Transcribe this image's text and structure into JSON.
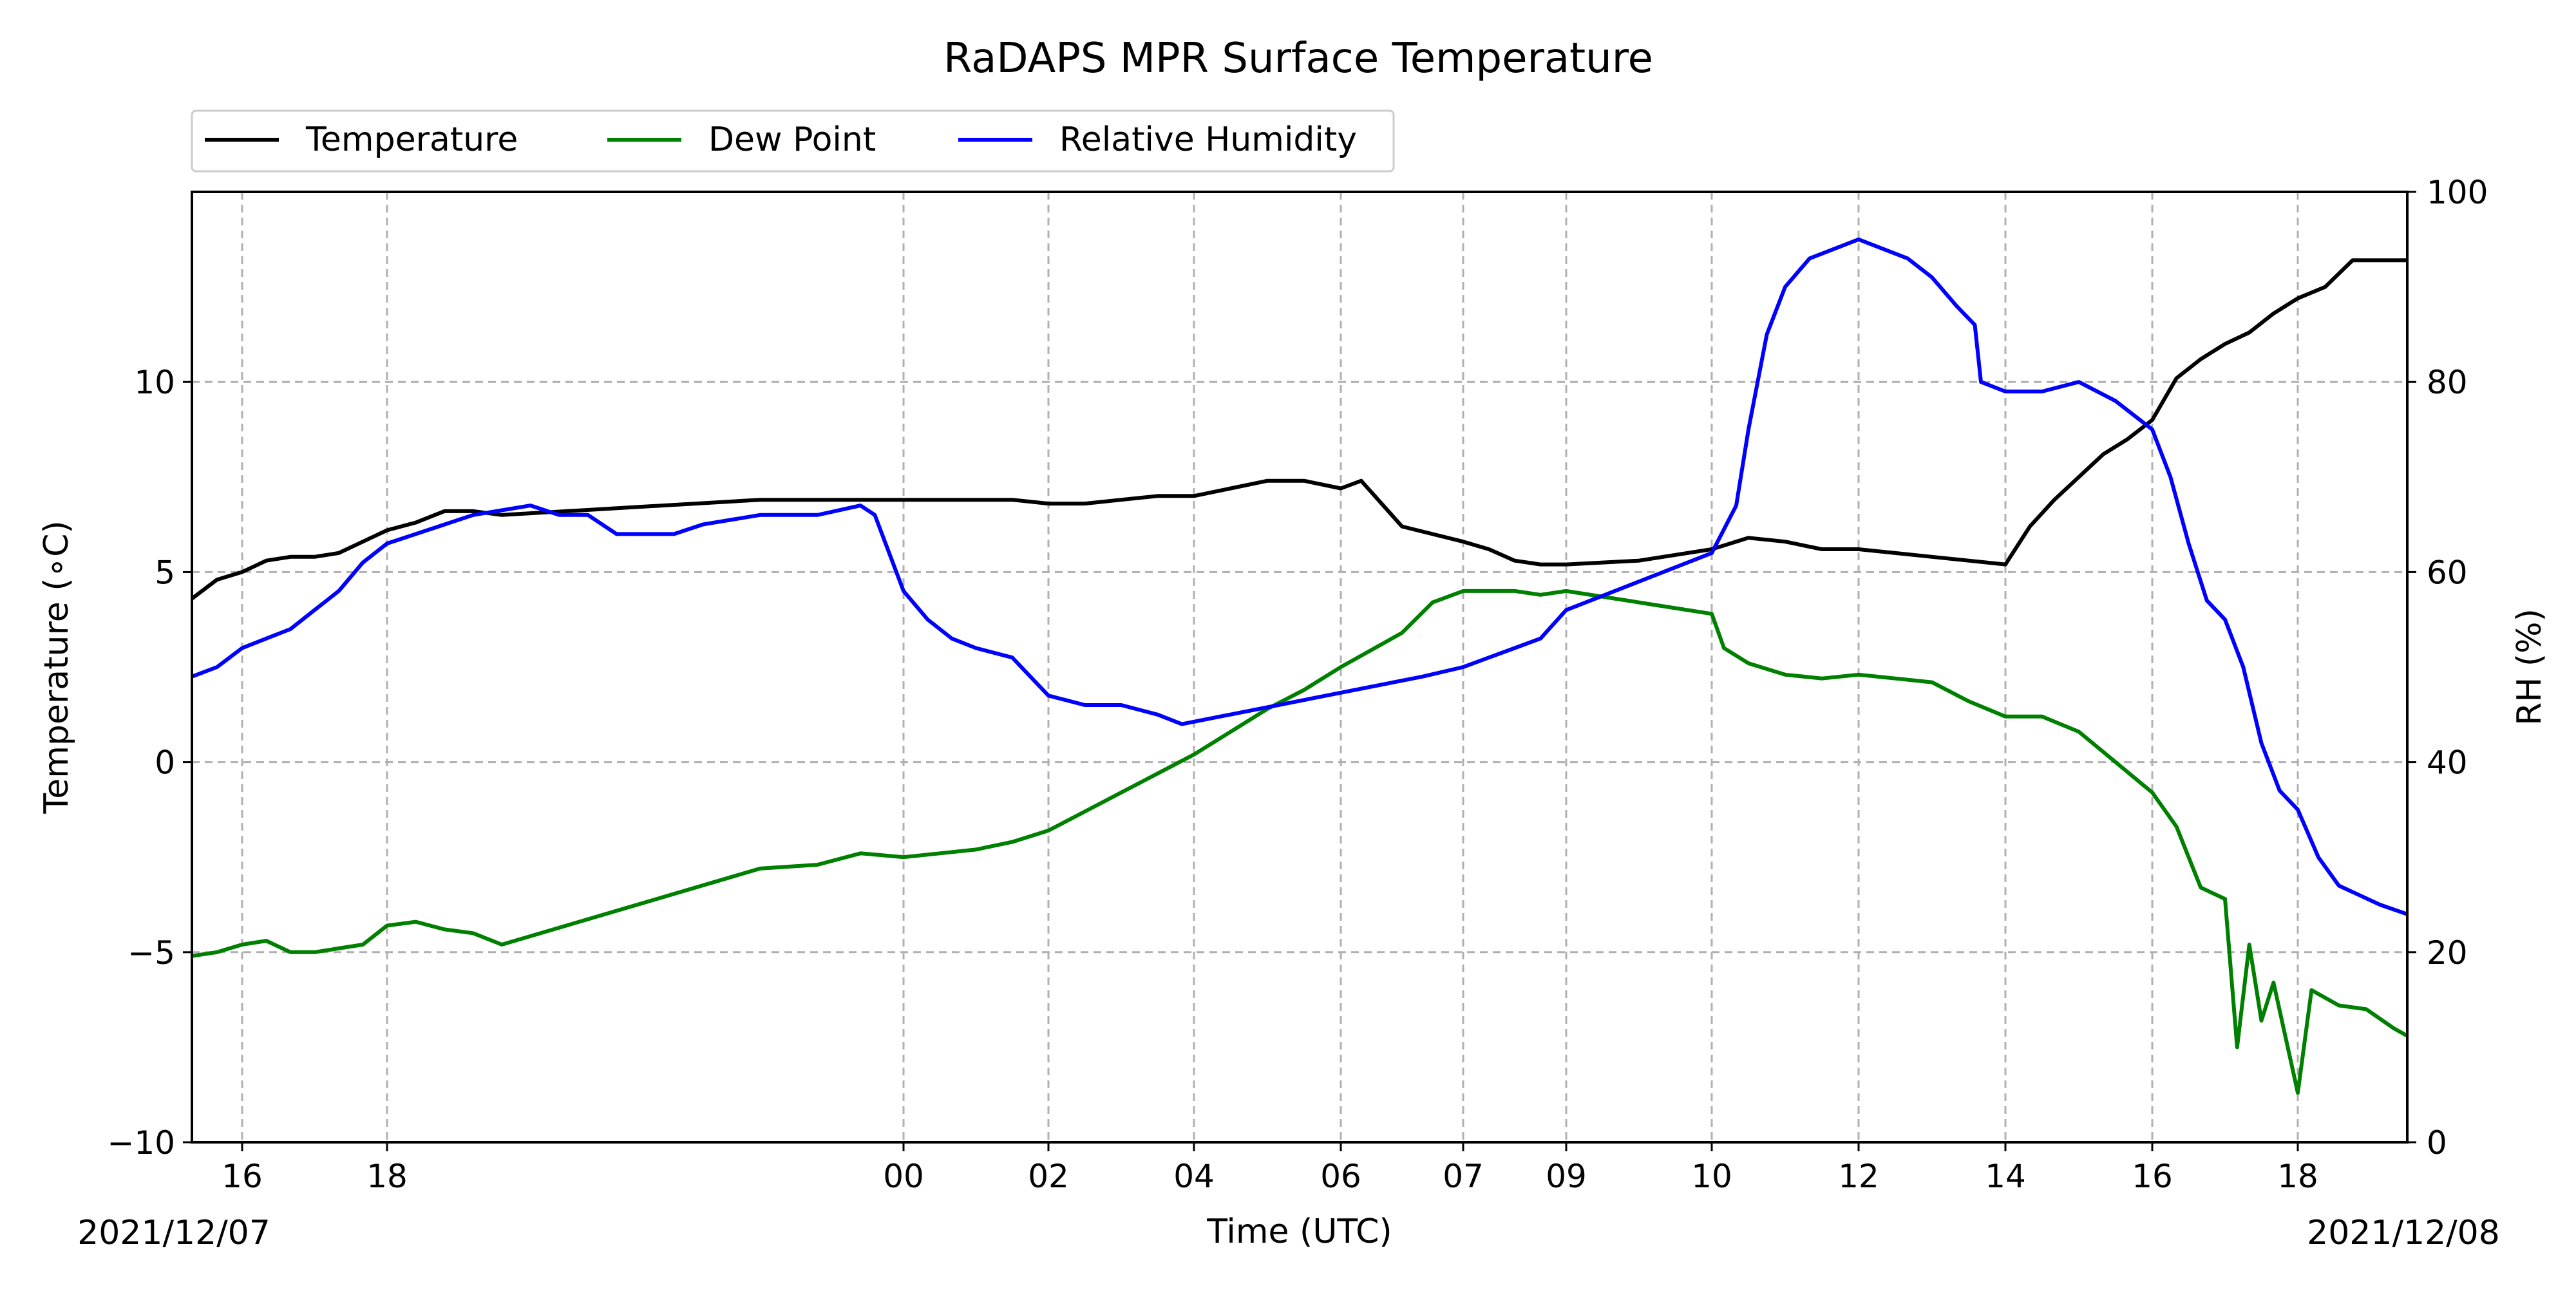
{
  "chart_data": {
    "type": "line",
    "title": "RaDAPS MPR Surface Temperature",
    "xlabel": "Time (UTC)",
    "ylabel_left": "Temperature (∘C)",
    "ylabel_right": "RH (%)",
    "date_start_label": "2021/12/07",
    "date_end_label": "2021/12/08",
    "x_ticks": [
      {
        "label": "16",
        "at": "2021-12-07 16:00"
      },
      {
        "label": "18",
        "at": "2021-12-07 18:00"
      },
      {
        "label": "00",
        "at": "2021-12-08 00:00"
      },
      {
        "label": "02",
        "at": "2021-12-08 02:00"
      },
      {
        "label": "04",
        "at": "2021-12-08 04:00"
      },
      {
        "label": "06",
        "at": "2021-12-08 06:00"
      },
      {
        "label": "07",
        "at": "2021-12-08 07:00"
      },
      {
        "label": "09",
        "at": "2021-12-08 09:00"
      },
      {
        "label": "10",
        "at": "2021-12-08 10:00"
      },
      {
        "label": "12",
        "at": "2021-12-08 12:00"
      },
      {
        "label": "14",
        "at": "2021-12-08 14:00"
      },
      {
        "label": "16",
        "at": "2021-12-08 16:00"
      },
      {
        "label": "18",
        "at": "2021-12-08 18:00"
      }
    ],
    "xlim": [
      "2021-12-07 15:20",
      "2021-12-08 19:20"
    ],
    "ylim_left": [
      -10,
      15
    ],
    "y_ticks_left": [
      -10,
      -5,
      0,
      5,
      10
    ],
    "y_tick_labels_left": [
      "−10",
      "−5",
      "0",
      "5",
      "10"
    ],
    "ylim_right": [
      0,
      100
    ],
    "y_ticks_right": [
      0,
      20,
      40,
      60,
      80,
      100
    ],
    "grid": true,
    "legend_position": "top-left",
    "series": [
      {
        "name": "Temperature",
        "axis": "left",
        "color": "#000000",
        "points": [
          [
            "2021-12-07 15:20",
            4.3
          ],
          [
            "2021-12-07 15:40",
            4.8
          ],
          [
            "2021-12-07 16:00",
            5.0
          ],
          [
            "2021-12-07 16:20",
            5.3
          ],
          [
            "2021-12-07 16:40",
            5.4
          ],
          [
            "2021-12-07 17:00",
            5.4
          ],
          [
            "2021-12-07 17:20",
            5.5
          ],
          [
            "2021-12-07 17:40",
            5.8
          ],
          [
            "2021-12-07 18:00",
            6.1
          ],
          [
            "2021-12-07 18:20",
            6.3
          ],
          [
            "2021-12-07 18:40",
            6.6
          ],
          [
            "2021-12-07 19:00",
            6.6
          ],
          [
            "2021-12-07 19:20",
            6.5
          ],
          [
            "2021-12-07 22:20",
            6.9
          ],
          [
            "2021-12-07 23:00",
            6.9
          ],
          [
            "2021-12-08 00:00",
            6.9
          ],
          [
            "2021-12-08 00:30",
            6.9
          ],
          [
            "2021-12-08 01:00",
            6.9
          ],
          [
            "2021-12-08 01:30",
            6.9
          ],
          [
            "2021-12-08 02:00",
            6.8
          ],
          [
            "2021-12-08 02:30",
            6.8
          ],
          [
            "2021-12-08 03:00",
            6.9
          ],
          [
            "2021-12-08 03:30",
            7.0
          ],
          [
            "2021-12-08 04:00",
            7.0
          ],
          [
            "2021-12-08 04:30",
            7.2
          ],
          [
            "2021-12-08 05:00",
            7.4
          ],
          [
            "2021-12-08 05:30",
            7.4
          ],
          [
            "2021-12-08 06:00",
            7.2
          ],
          [
            "2021-12-08 06:10",
            7.4
          ],
          [
            "2021-12-08 06:30",
            6.2
          ],
          [
            "2021-12-08 07:00",
            5.8
          ],
          [
            "2021-12-08 07:30",
            5.6
          ],
          [
            "2021-12-08 08:00",
            5.3
          ],
          [
            "2021-12-08 08:30",
            5.2
          ],
          [
            "2021-12-08 09:00",
            5.2
          ],
          [
            "2021-12-08 09:30",
            5.3
          ],
          [
            "2021-12-08 10:00",
            5.6
          ],
          [
            "2021-12-08 10:30",
            5.9
          ],
          [
            "2021-12-08 11:00",
            5.8
          ],
          [
            "2021-12-08 11:30",
            5.6
          ],
          [
            "2021-12-08 12:00",
            5.6
          ],
          [
            "2021-12-08 12:30",
            5.5
          ],
          [
            "2021-12-08 13:00",
            5.4
          ],
          [
            "2021-12-08 13:30",
            5.3
          ],
          [
            "2021-12-08 14:00",
            5.2
          ],
          [
            "2021-12-08 14:20",
            6.2
          ],
          [
            "2021-12-08 14:40",
            6.9
          ],
          [
            "2021-12-08 15:00",
            7.5
          ],
          [
            "2021-12-08 15:20",
            8.1
          ],
          [
            "2021-12-08 15:40",
            8.5
          ],
          [
            "2021-12-08 16:00",
            9.0
          ],
          [
            "2021-12-08 16:20",
            10.1
          ],
          [
            "2021-12-08 16:40",
            10.6
          ],
          [
            "2021-12-08 17:00",
            11.0
          ],
          [
            "2021-12-08 17:20",
            11.3
          ],
          [
            "2021-12-08 17:40",
            11.8
          ],
          [
            "2021-12-08 18:00",
            12.2
          ],
          [
            "2021-12-08 18:20",
            12.5
          ],
          [
            "2021-12-08 18:40",
            13.2
          ],
          [
            "2021-12-08 19:00",
            13.2
          ],
          [
            "2021-12-08 19:20",
            13.2
          ]
        ]
      },
      {
        "name": "Dew Point",
        "axis": "left",
        "color": "#008000",
        "points": [
          [
            "2021-12-07 15:20",
            -5.1
          ],
          [
            "2021-12-07 15:40",
            -5.0
          ],
          [
            "2021-12-07 16:00",
            -4.8
          ],
          [
            "2021-12-07 16:20",
            -4.7
          ],
          [
            "2021-12-07 16:40",
            -5.0
          ],
          [
            "2021-12-07 17:00",
            -5.0
          ],
          [
            "2021-12-07 17:20",
            -4.9
          ],
          [
            "2021-12-07 17:40",
            -4.8
          ],
          [
            "2021-12-07 18:00",
            -4.3
          ],
          [
            "2021-12-07 18:20",
            -4.2
          ],
          [
            "2021-12-07 18:40",
            -4.4
          ],
          [
            "2021-12-07 19:00",
            -4.5
          ],
          [
            "2021-12-07 19:20",
            -4.8
          ],
          [
            "2021-12-07 22:20",
            -2.8
          ],
          [
            "2021-12-07 23:00",
            -2.7
          ],
          [
            "2021-12-07 23:30",
            -2.4
          ],
          [
            "2021-12-08 00:00",
            -2.5
          ],
          [
            "2021-12-08 00:30",
            -2.4
          ],
          [
            "2021-12-08 01:00",
            -2.3
          ],
          [
            "2021-12-08 01:30",
            -2.1
          ],
          [
            "2021-12-08 02:00",
            -1.8
          ],
          [
            "2021-12-08 02:30",
            -1.3
          ],
          [
            "2021-12-08 03:00",
            -0.8
          ],
          [
            "2021-12-08 03:30",
            -0.3
          ],
          [
            "2021-12-08 04:00",
            0.2
          ],
          [
            "2021-12-08 04:30",
            0.8
          ],
          [
            "2021-12-08 05:00",
            1.4
          ],
          [
            "2021-12-08 05:30",
            1.9
          ],
          [
            "2021-12-08 06:00",
            2.5
          ],
          [
            "2021-12-08 06:30",
            3.4
          ],
          [
            "2021-12-08 06:45",
            4.2
          ],
          [
            "2021-12-08 07:00",
            4.5
          ],
          [
            "2021-12-08 07:30",
            4.5
          ],
          [
            "2021-12-08 08:00",
            4.5
          ],
          [
            "2021-12-08 08:30",
            4.4
          ],
          [
            "2021-12-08 09:00",
            4.5
          ],
          [
            "2021-12-08 09:30",
            4.2
          ],
          [
            "2021-12-08 10:00",
            3.9
          ],
          [
            "2021-12-08 10:10",
            3.0
          ],
          [
            "2021-12-08 10:30",
            2.6
          ],
          [
            "2021-12-08 11:00",
            2.3
          ],
          [
            "2021-12-08 11:30",
            2.2
          ],
          [
            "2021-12-08 12:00",
            2.3
          ],
          [
            "2021-12-08 12:30",
            2.2
          ],
          [
            "2021-12-08 13:00",
            2.1
          ],
          [
            "2021-12-08 13:30",
            1.6
          ],
          [
            "2021-12-08 14:00",
            1.2
          ],
          [
            "2021-12-08 14:30",
            1.2
          ],
          [
            "2021-12-08 15:00",
            0.8
          ],
          [
            "2021-12-08 15:30",
            0.0
          ],
          [
            "2021-12-08 16:00",
            -0.8
          ],
          [
            "2021-12-08 16:20",
            -1.7
          ],
          [
            "2021-12-08 16:40",
            -3.3
          ],
          [
            "2021-12-08 17:00",
            -3.6
          ],
          [
            "2021-12-08 17:10",
            -7.5
          ],
          [
            "2021-12-08 17:20",
            -4.8
          ],
          [
            "2021-12-08 17:30",
            -6.8
          ],
          [
            "2021-12-08 17:40",
            -5.8
          ],
          [
            "2021-12-08 18:00",
            -8.7
          ],
          [
            "2021-12-08 18:10",
            -6.0
          ],
          [
            "2021-12-08 18:30",
            -6.4
          ],
          [
            "2021-12-08 18:50",
            -6.5
          ],
          [
            "2021-12-08 19:10",
            -7.0
          ],
          [
            "2021-12-08 19:20",
            -7.2
          ]
        ]
      },
      {
        "name": "Relative Humidity",
        "axis": "right",
        "color": "#0000ff",
        "points": [
          [
            "2021-12-07 15:20",
            49
          ],
          [
            "2021-12-07 15:40",
            50
          ],
          [
            "2021-12-07 16:00",
            52
          ],
          [
            "2021-12-07 16:20",
            53
          ],
          [
            "2021-12-07 16:40",
            54
          ],
          [
            "2021-12-07 17:00",
            56
          ],
          [
            "2021-12-07 17:20",
            58
          ],
          [
            "2021-12-07 17:40",
            61
          ],
          [
            "2021-12-07 18:00",
            63
          ],
          [
            "2021-12-07 18:20",
            64
          ],
          [
            "2021-12-07 18:40",
            65
          ],
          [
            "2021-12-07 19:00",
            66
          ],
          [
            "2021-12-07 19:40",
            67
          ],
          [
            "2021-12-07 20:00",
            66
          ],
          [
            "2021-12-07 20:20",
            66
          ],
          [
            "2021-12-07 20:40",
            64
          ],
          [
            "2021-12-07 21:00",
            64
          ],
          [
            "2021-12-07 21:20",
            64
          ],
          [
            "2021-12-07 21:40",
            65
          ],
          [
            "2021-12-07 22:20",
            66
          ],
          [
            "2021-12-07 23:00",
            66
          ],
          [
            "2021-12-07 23:30",
            67
          ],
          [
            "2021-12-07 23:40",
            66
          ],
          [
            "2021-12-08 00:00",
            58
          ],
          [
            "2021-12-08 00:20",
            55
          ],
          [
            "2021-12-08 00:40",
            53
          ],
          [
            "2021-12-08 01:00",
            52
          ],
          [
            "2021-12-08 01:30",
            51
          ],
          [
            "2021-12-08 02:00",
            47
          ],
          [
            "2021-12-08 02:30",
            46
          ],
          [
            "2021-12-08 03:00",
            46
          ],
          [
            "2021-12-08 03:30",
            45
          ],
          [
            "2021-12-08 03:50",
            44
          ],
          [
            "2021-12-08 06:40",
            49
          ],
          [
            "2021-12-08 07:00",
            50
          ],
          [
            "2021-12-08 07:30",
            51
          ],
          [
            "2021-12-08 08:00",
            52
          ],
          [
            "2021-12-08 08:30",
            53
          ],
          [
            "2021-12-08 09:00",
            56
          ],
          [
            "2021-12-08 09:30",
            59
          ],
          [
            "2021-12-08 10:00",
            62
          ],
          [
            "2021-12-08 10:20",
            67
          ],
          [
            "2021-12-08 10:30",
            75
          ],
          [
            "2021-12-08 10:45",
            85
          ],
          [
            "2021-12-08 11:00",
            90
          ],
          [
            "2021-12-08 11:20",
            93
          ],
          [
            "2021-12-08 11:40",
            94
          ],
          [
            "2021-12-08 12:00",
            95
          ],
          [
            "2021-12-08 12:20",
            94
          ],
          [
            "2021-12-08 12:40",
            93
          ],
          [
            "2021-12-08 13:00",
            91
          ],
          [
            "2021-12-08 13:20",
            88
          ],
          [
            "2021-12-08 13:35",
            86
          ],
          [
            "2021-12-08 13:40",
            80
          ],
          [
            "2021-12-08 14:00",
            79
          ],
          [
            "2021-12-08 14:30",
            79
          ],
          [
            "2021-12-08 15:00",
            80
          ],
          [
            "2021-12-08 15:30",
            78
          ],
          [
            "2021-12-08 16:00",
            75
          ],
          [
            "2021-12-08 16:15",
            70
          ],
          [
            "2021-12-08 16:30",
            63
          ],
          [
            "2021-12-08 16:45",
            57
          ],
          [
            "2021-12-08 17:00",
            55
          ],
          [
            "2021-12-08 17:15",
            50
          ],
          [
            "2021-12-08 17:30",
            42
          ],
          [
            "2021-12-08 17:45",
            37
          ],
          [
            "2021-12-08 18:00",
            35
          ],
          [
            "2021-12-08 18:15",
            30
          ],
          [
            "2021-12-08 18:30",
            27
          ],
          [
            "2021-12-08 18:45",
            26
          ],
          [
            "2021-12-08 19:00",
            25
          ],
          [
            "2021-12-08 19:20",
            24
          ]
        ]
      }
    ]
  }
}
